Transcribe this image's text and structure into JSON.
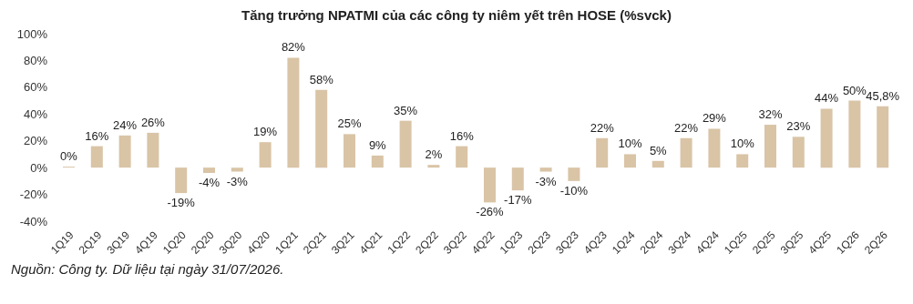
{
  "chart_data": {
    "type": "bar",
    "title": "Tăng trưởng NPATMI của các công ty niêm yết trên HOSE (%svck)",
    "categories": [
      "1Q19",
      "2Q19",
      "3Q19",
      "4Q19",
      "1Q20",
      "2Q20",
      "3Q20",
      "4Q20",
      "1Q21",
      "2Q21",
      "3Q21",
      "4Q21",
      "1Q22",
      "2Q22",
      "3Q22",
      "4Q22",
      "1Q23",
      "2Q23",
      "3Q23",
      "4Q23",
      "1Q24",
      "2Q24",
      "3Q24",
      "4Q24",
      "1Q25",
      "2Q25",
      "3Q25",
      "4Q25",
      "1Q26",
      "2Q26"
    ],
    "values": [
      0,
      16,
      24,
      26,
      -19,
      -4,
      -3,
      19,
      82,
      58,
      25,
      9,
      35,
      2,
      16,
      -26,
      -17,
      -3,
      -10,
      22,
      10,
      5,
      22,
      29,
      10,
      32,
      23,
      44,
      50,
      45.8
    ],
    "value_labels": [
      "0%",
      "16%",
      "24%",
      "26%",
      "-19%",
      "-4%",
      "-3%",
      "19%",
      "82%",
      "58%",
      "25%",
      "9%",
      "35%",
      "2%",
      "16%",
      "-26%",
      "-17%",
      "-3%",
      "-10%",
      "22%",
      "10%",
      "5%",
      "22%",
      "29%",
      "10%",
      "32%",
      "23%",
      "44%",
      "50%",
      "45,8%"
    ],
    "color": "#d9c4a6",
    "ylim": [
      -40,
      100
    ],
    "yticks": [
      {
        "value": -40,
        "label": "-40%"
      },
      {
        "value": -20,
        "label": "-20%"
      },
      {
        "value": 0,
        "label": "0%"
      },
      {
        "value": 20,
        "label": "20%"
      },
      {
        "value": 40,
        "label": "40%"
      },
      {
        "value": 60,
        "label": "60%"
      },
      {
        "value": 80,
        "label": "80%"
      },
      {
        "value": 100,
        "label": "100%"
      }
    ],
    "grid": false,
    "legend": false,
    "annotations": [
      "Nguồn: Công ty. Dữ liệu tại ngày 31/07/2026."
    ]
  }
}
